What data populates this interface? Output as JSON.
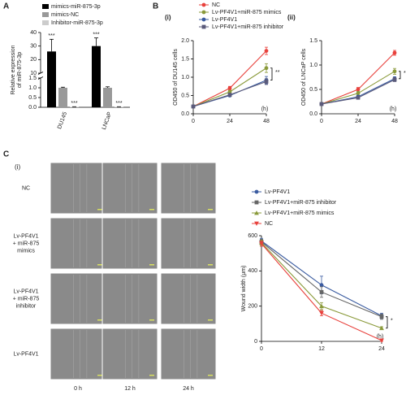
{
  "panel_labels": [
    "A",
    "B",
    "C"
  ],
  "chart_data": [
    {
      "type": "bar",
      "ylabel": [
        "Relative expression",
        "of miR-875-3p"
      ],
      "categories": [
        "DU145",
        "LNCaP"
      ],
      "series": [
        {
          "name": "mimics-miR-875-3p",
          "color": "#000000",
          "values": [
            26,
            30
          ],
          "errors": [
            9,
            6
          ],
          "significance": [
            "***",
            "***"
          ]
        },
        {
          "name": "mimics-NC",
          "color": "#999999",
          "values": [
            1,
            1
          ],
          "errors": [
            0.03,
            0.05
          ]
        },
        {
          "name": "Inhibitor-miR-875-3p",
          "color": "#cccccc",
          "values": [
            0.02,
            0.02
          ],
          "errors": [
            0.01,
            0.01
          ],
          "significance": [
            "***",
            "***"
          ]
        }
      ],
      "ylim": [
        0,
        40
      ],
      "ybreak": [
        1.5,
        10
      ],
      "yticks": [
        {
          "value": 0,
          "label": "0.0"
        },
        {
          "value": 0.5,
          "label": "0.5"
        },
        {
          "value": 1,
          "label": "1.0"
        },
        {
          "value": 1.5,
          "label": "1.5"
        },
        10,
        20,
        30,
        40
      ],
      "legend": "top"
    },
    {
      "type": "line",
      "label": "(i)",
      "ylabel": "OD450 of DU145 cells",
      "xlabel": "(h)",
      "x": [
        0,
        24,
        48
      ],
      "xlim": [
        0,
        48
      ],
      "xticks": [
        0,
        24,
        48
      ],
      "ylim": [
        0,
        2
      ],
      "yticks": [
        {
          "value": 0,
          "label": "0.0"
        },
        {
          "value": 0.5,
          "label": "0.5"
        },
        {
          "value": 1,
          "label": "1.0"
        },
        {
          "value": 1.5,
          "label": "1.5"
        },
        {
          "value": 2,
          "label": "2.0"
        }
      ],
      "series": [
        {
          "name": "NC",
          "color": "#e8413c",
          "marker": "circle",
          "values": [
            0.2,
            0.7,
            1.72
          ],
          "errors": [
            0.02,
            0.05,
            0.1
          ]
        },
        {
          "name": "Lv-PF4V1+miR-875 mimics",
          "color": "#8a9a3a",
          "marker": "circle",
          "values": [
            0.2,
            0.6,
            1.25
          ],
          "errors": [
            0.02,
            0.04,
            0.12
          ]
        },
        {
          "name": "Lv-PF4V1",
          "color": "#3a5ba0",
          "marker": "circle",
          "values": [
            0.2,
            0.5,
            0.92
          ],
          "errors": [
            0.02,
            0.03,
            0.1
          ]
        },
        {
          "name": "Lv-PF4V1+miR-875 inhibitor",
          "color": "#5a5a7a",
          "marker": "square",
          "values": [
            0.2,
            0.52,
            0.88
          ],
          "errors": [
            0.02,
            0.03,
            0.08
          ]
        }
      ],
      "annotation": "**",
      "legend": "top"
    },
    {
      "type": "line",
      "label": "(ii)",
      "ylabel": "OD450 of LNCaP cells",
      "xlabel": "(h)",
      "x": [
        0,
        24,
        48
      ],
      "xlim": [
        0,
        48
      ],
      "xticks": [
        0,
        24,
        48
      ],
      "ylim": [
        0,
        1.5
      ],
      "yticks": [
        {
          "value": 0,
          "label": "0.0"
        },
        {
          "value": 0.5,
          "label": "0.5"
        },
        {
          "value": 1,
          "label": "1.0"
        },
        {
          "value": 1.5,
          "label": "1.5"
        }
      ],
      "series": [
        {
          "color": "#e8413c",
          "marker": "circle",
          "values": [
            0.2,
            0.5,
            1.25
          ],
          "errors": [
            0.02,
            0.04,
            0.05
          ]
        },
        {
          "color": "#8a9a3a",
          "marker": "circle",
          "values": [
            0.2,
            0.42,
            0.87
          ],
          "errors": [
            0.02,
            0.04,
            0.06
          ]
        },
        {
          "color": "#3a5ba0",
          "marker": "circle",
          "values": [
            0.2,
            0.35,
            0.72
          ],
          "errors": [
            0.02,
            0.03,
            0.04
          ]
        },
        {
          "color": "#5a5a7a",
          "marker": "square",
          "values": [
            0.2,
            0.33,
            0.7
          ],
          "errors": [
            0.02,
            0.03,
            0.04
          ]
        }
      ],
      "annotation": "*"
    },
    {
      "type": "line",
      "ylabel": "Wound width (μm)",
      "xlabel": "(h)",
      "x": [
        0,
        12,
        24
      ],
      "xlim": [
        0,
        24
      ],
      "xticks": [
        0,
        12,
        24
      ],
      "ylim": [
        0,
        600
      ],
      "yticks": [
        0,
        200,
        400,
        600
      ],
      "series": [
        {
          "name": "Lv-PF4V1",
          "color": "#3a5ba0",
          "marker": "circle",
          "values": [
            570,
            320,
            145
          ],
          "errors": [
            15,
            50,
            15
          ]
        },
        {
          "name": "Lv-PF4V1+miR-875 inhibitor",
          "color": "#666666",
          "marker": "square",
          "values": [
            565,
            280,
            140
          ],
          "errors": [
            15,
            30,
            15
          ]
        },
        {
          "name": "Lv-PF4V1+miR-875 mimics",
          "color": "#8a9a3a",
          "marker": "triangle-up",
          "values": [
            560,
            200,
            75
          ],
          "errors": [
            15,
            20,
            8
          ]
        },
        {
          "name": "NC",
          "color": "#e8413c",
          "marker": "triangle-down",
          "values": [
            555,
            160,
            5
          ],
          "errors": [
            15,
            15,
            5
          ]
        }
      ],
      "annotation": "*",
      "legend": "upper left"
    }
  ],
  "images": {
    "label": "(i)",
    "rows": [
      [
        "NC"
      ],
      [
        "Lv-PF4V1",
        "+ miR-875",
        "mimics"
      ],
      [
        "Lv-PF4V1",
        "+ miR-875",
        "inhibitor"
      ],
      [
        "Lv-PF4V1"
      ]
    ],
    "columns": [
      "0 h",
      "12 h",
      "24 h"
    ]
  }
}
